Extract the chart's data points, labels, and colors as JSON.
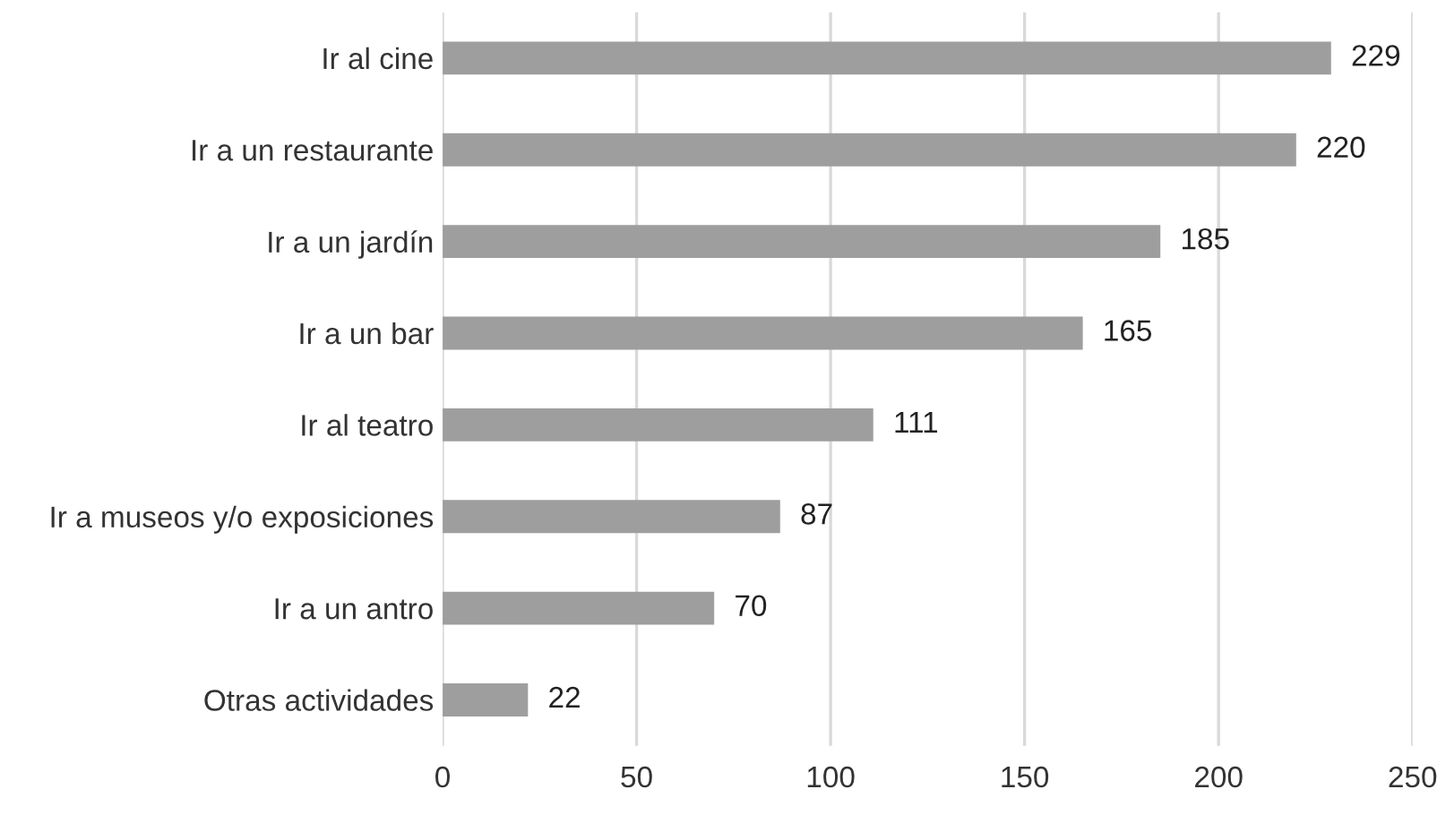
{
  "chart_data": {
    "type": "bar",
    "orientation": "horizontal",
    "categories": [
      "Ir al cine",
      "Ir a un restaurante",
      "Ir a un jardín",
      "Ir a un bar",
      "Ir al teatro",
      "Ir a museos y/o exposiciones",
      "Ir a un antro",
      "Otras actividades"
    ],
    "values": [
      229,
      220,
      185,
      165,
      111,
      87,
      70,
      22
    ],
    "color": "#9e9e9e",
    "xlim": [
      0,
      250
    ],
    "xticks": [
      0,
      50,
      100,
      150,
      200,
      250
    ],
    "grid": "x",
    "data_labels": true
  }
}
